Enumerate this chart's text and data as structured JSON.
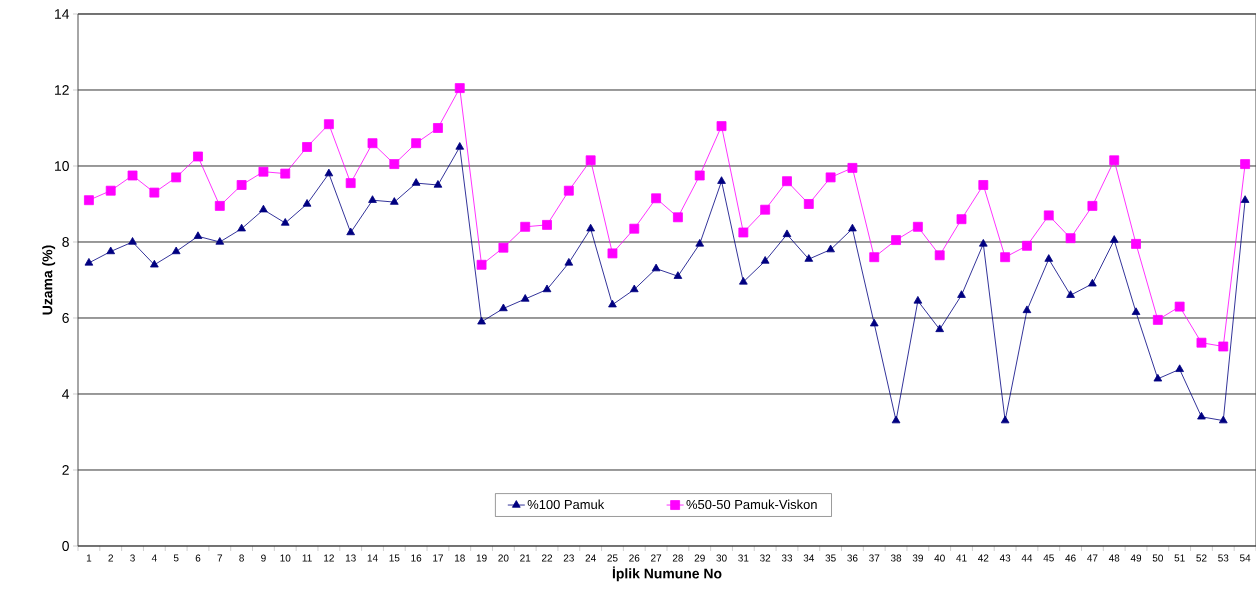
{
  "chart_data": {
    "type": "line",
    "xlabel": "İplik Numune No",
    "ylabel": "Uzama (%)",
    "categories": [
      "1",
      "2",
      "3",
      "4",
      "5",
      "6",
      "7",
      "8",
      "9",
      "10",
      "11",
      "12",
      "13",
      "14",
      "15",
      "16",
      "17",
      "18",
      "19",
      "20",
      "21",
      "22",
      "23",
      "24",
      "25",
      "26",
      "27",
      "28",
      "29",
      "30",
      "31",
      "32",
      "33",
      "34",
      "35",
      "36",
      "37",
      "38",
      "39",
      "40",
      "41",
      "42",
      "43",
      "44",
      "45",
      "46",
      "47",
      "48",
      "49",
      "50",
      "51",
      "52",
      "53",
      "54"
    ],
    "series": [
      {
        "name": "%100 Pamuk",
        "color": "#000080",
        "marker": "triangle",
        "values": [
          7.45,
          7.75,
          8.0,
          7.4,
          7.75,
          8.15,
          8.0,
          8.35,
          8.85,
          8.5,
          9.0,
          9.8,
          8.25,
          9.1,
          9.05,
          9.55,
          9.5,
          10.5,
          5.9,
          6.25,
          6.5,
          6.75,
          7.45,
          8.35,
          6.35,
          6.75,
          7.3,
          7.1,
          7.95,
          9.6,
          6.95,
          7.5,
          8.2,
          7.55,
          7.8,
          8.35,
          5.85,
          3.3,
          6.45,
          5.7,
          6.6,
          7.95,
          3.3,
          6.2,
          7.55,
          6.6,
          6.9,
          8.05,
          6.15,
          4.4,
          4.65,
          3.4,
          3.3,
          9.1
        ]
      },
      {
        "name": "%50-50 Pamuk-Viskon",
        "color": "#ff00ff",
        "marker": "square",
        "values": [
          9.1,
          9.35,
          9.75,
          9.3,
          9.7,
          10.25,
          8.95,
          9.5,
          9.85,
          9.8,
          10.5,
          11.1,
          9.55,
          10.6,
          10.05,
          10.6,
          11.0,
          12.05,
          7.4,
          7.85,
          8.4,
          8.45,
          9.35,
          10.15,
          7.7,
          8.35,
          9.15,
          8.65,
          9.75,
          11.05,
          8.25,
          8.85,
          9.6,
          9.0,
          9.7,
          9.95,
          7.6,
          8.05,
          8.4,
          7.65,
          8.6,
          9.5,
          7.6,
          7.9,
          8.7,
          8.1,
          8.95,
          10.15,
          7.95,
          5.95,
          6.3,
          5.35,
          5.25,
          10.05
        ]
      }
    ],
    "ylim": [
      0,
      14
    ],
    "yticks": [
      0,
      2,
      4,
      6,
      8,
      10,
      12,
      14
    ],
    "grid": "y",
    "legend": "bottom",
    "line_style": "solid"
  }
}
